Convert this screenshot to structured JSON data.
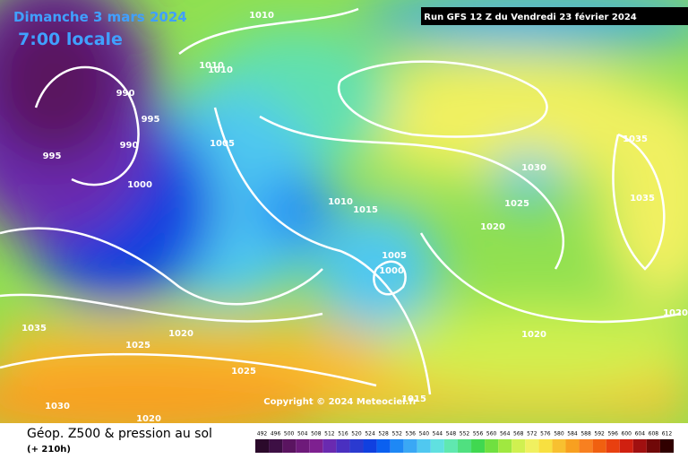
{
  "header": {
    "date": "Dimanche 3 mars 2024",
    "time": "7:00 locale",
    "run": "Run GFS 12 Z du Vendredi 23 février 2024"
  },
  "copyright": "Copyright © 2024 Meteociel.fr",
  "footer": {
    "title": "Géop. Z500 & pression au sol",
    "lead": "(+ 210h)"
  },
  "scale": {
    "values": [
      492,
      496,
      500,
      504,
      508,
      512,
      516,
      520,
      524,
      528,
      532,
      536,
      540,
      544,
      548,
      552,
      556,
      560,
      564,
      568,
      572,
      576,
      580,
      584,
      588,
      592,
      596,
      600,
      604,
      608,
      612
    ],
    "colors": [
      "#2b0a2b",
      "#3d0f44",
      "#5a1460",
      "#6e1a7a",
      "#7e2090",
      "#6a2ab0",
      "#4a30c0",
      "#2a3ad0",
      "#1040e0",
      "#0a60f0",
      "#1e88f5",
      "#3aa8f5",
      "#50c8f0",
      "#60e0e0",
      "#60e8b0",
      "#50e080",
      "#40d850",
      "#70e040",
      "#a0e840",
      "#d0f050",
      "#f0f060",
      "#f8e040",
      "#f8c030",
      "#f8a020",
      "#f88020",
      "#f06010",
      "#e84010",
      "#d02010",
      "#a01010",
      "#700808",
      "#300000"
    ]
  },
  "isobar_labels": [
    1010,
    1010,
    1010,
    990,
    995,
    990,
    995,
    1000,
    1005,
    1010,
    1015,
    1005,
    1000,
    1030,
    1025,
    1020,
    1035,
    1035,
    1020,
    1020,
    1035,
    1025,
    1020,
    1025,
    1030,
    1020,
    1015
  ]
}
